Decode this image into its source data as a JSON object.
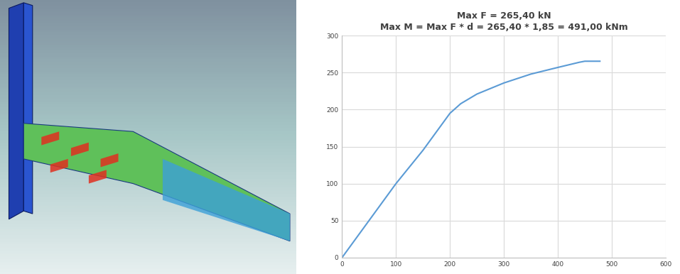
{
  "chart_data": {
    "type": "line",
    "title": "Max F = 265,40 kN\nMax M = Max F * d = 265,40 * 1,85 = 491,00 kNm",
    "x": [
      0,
      50,
      100,
      150,
      180,
      200,
      220,
      250,
      300,
      350,
      400,
      440,
      450,
      478
    ],
    "values": [
      0,
      50,
      100,
      145,
      175,
      195,
      208,
      221,
      236,
      248,
      257,
      264,
      265.4,
      265.4
    ],
    "color": "#5b9bd5",
    "xlim": [
      0,
      600
    ],
    "xticks": [
      0,
      100,
      200,
      300,
      400,
      500,
      600
    ],
    "ylim": [
      0,
      300
    ],
    "yticks": [
      0,
      50,
      100,
      150,
      200,
      250,
      300
    ],
    "grid": true
  }
}
